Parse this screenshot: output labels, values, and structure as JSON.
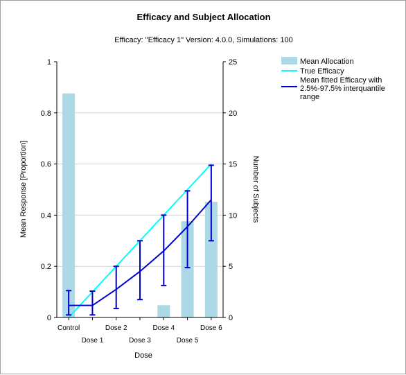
{
  "chart_data": {
    "type": "bar",
    "title": "Efficacy and Subject Allocation",
    "subtitle": "Efficacy: \"Efficacy 1\" Version: 4.0.0, Simulations: 100",
    "xlabel": "Dose",
    "ylabel_left": "Mean Response [Proportion]",
    "ylabel_right": "Number of Subjects",
    "categories": [
      "Control",
      "Dose 1",
      "Dose 2",
      "Dose 3",
      "Dose 4",
      "Dose 5",
      "Dose 6"
    ],
    "ylim_left": [
      0,
      1
    ],
    "ylim_right": [
      0,
      25
    ],
    "yticks_left": [
      "0",
      "0.2",
      "0.4",
      "0.6",
      "0.8",
      "1"
    ],
    "yticks_right": [
      "0",
      "5",
      "10",
      "15",
      "20",
      "25"
    ],
    "grid": true,
    "legend_position": "right",
    "series": [
      {
        "name": "Mean Allocation",
        "kind": "bar",
        "axis": "right",
        "color": "#add8e6",
        "values": [
          21.9,
          0,
          0,
          0,
          1.2,
          9.4,
          11.3
        ]
      },
      {
        "name": "True Efficacy",
        "kind": "line",
        "axis": "left",
        "color": "#00ffff",
        "values": [
          0.0,
          0.1,
          0.2,
          0.3,
          0.4,
          0.5,
          0.6
        ]
      },
      {
        "name": "Mean fitted Efficacy with 2.5%-97.5% interquantile range",
        "kind": "line-errorbar",
        "axis": "left",
        "color": "#0000cd",
        "values": [
          0.047,
          0.047,
          0.11,
          0.18,
          0.26,
          0.355,
          0.46
        ],
        "lower": [
          0.01,
          0.01,
          0.035,
          0.07,
          0.125,
          0.195,
          0.3
        ],
        "upper": [
          0.105,
          0.103,
          0.2,
          0.3,
          0.4,
          0.495,
          0.595
        ]
      }
    ]
  }
}
